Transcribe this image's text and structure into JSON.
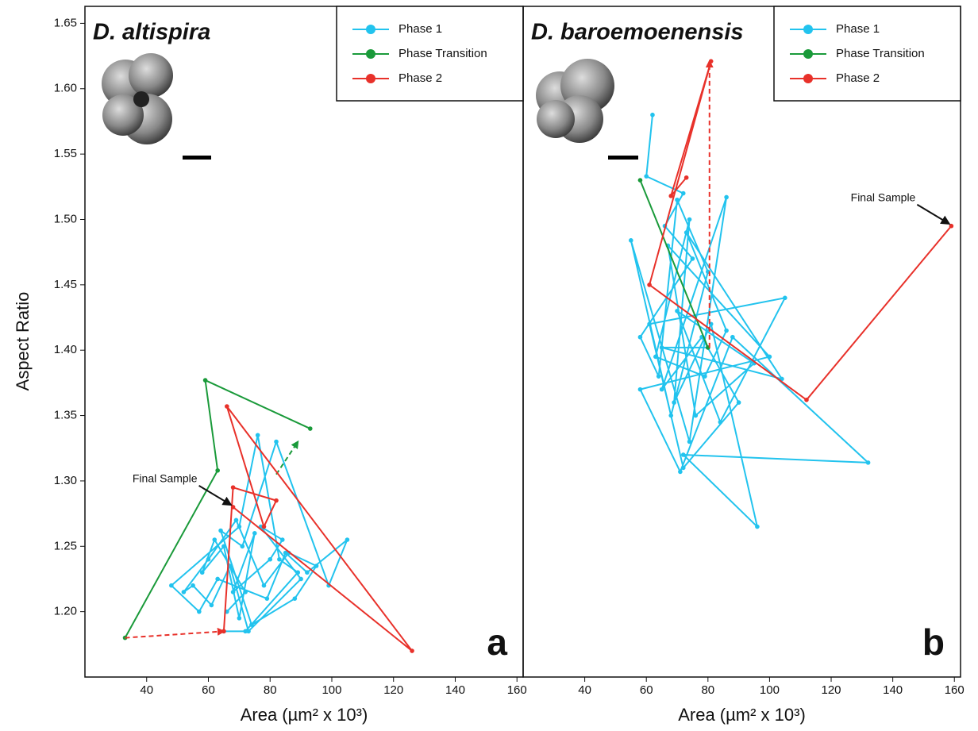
{
  "chart_data": [
    {
      "type": "line",
      "title": "D. altispira",
      "panel_label": "a",
      "ylabel": "Aspect Ratio",
      "xlabel": "Area (µm² x 10³)",
      "xlim": [
        20,
        162
      ],
      "ylim": [
        1.15,
        1.663
      ],
      "xticks": [
        40,
        60,
        80,
        100,
        120,
        140,
        160
      ],
      "yticks": [
        {
          "value": 1.2,
          "label": "1.20"
        },
        {
          "value": 1.25,
          "label": "1.25"
        },
        {
          "value": 1.3,
          "label": "1.30"
        },
        {
          "value": 1.35,
          "label": "1.35"
        },
        {
          "value": 1.4,
          "label": "1.40"
        },
        {
          "value": 1.45,
          "label": "1.45"
        },
        {
          "value": 1.5,
          "label": "1.50"
        },
        {
          "value": 1.55,
          "label": "1.55"
        },
        {
          "value": 1.6,
          "label": "1.60"
        },
        {
          "value": 1.65,
          "label": "1.65"
        }
      ],
      "series": [
        {
          "name": "Phase 1",
          "color": "#22c3ee",
          "x": [
            66,
            72,
            62,
            58,
            65,
            70,
            75,
            68,
            80,
            84,
            77,
            90,
            73,
            67,
            61,
            55,
            52,
            60,
            69,
            78,
            86,
            95,
            88,
            74,
            64,
            71,
            82,
            99,
            105,
            92,
            85,
            79,
            63,
            57,
            48,
            70,
            76,
            83,
            89,
            72,
            65
          ],
          "values": [
            1.2,
            1.215,
            1.255,
            1.23,
            1.25,
            1.195,
            1.26,
            1.215,
            1.24,
            1.255,
            1.265,
            1.225,
            1.185,
            1.235,
            1.205,
            1.22,
            1.215,
            1.24,
            1.27,
            1.22,
            1.245,
            1.235,
            1.21,
            1.19,
            1.262,
            1.25,
            1.33,
            1.22,
            1.255,
            1.23,
            1.245,
            1.21,
            1.225,
            1.2,
            1.22,
            1.265,
            1.335,
            1.24,
            1.23,
            1.185,
            1.185
          ]
        },
        {
          "name": "Phase Transition",
          "color": "#1a9a3a",
          "x": [
            33,
            63,
            59,
            93
          ],
          "values": [
            1.18,
            1.308,
            1.377,
            1.34
          ],
          "dashed": {
            "x": [
              82,
              89
            ],
            "values": [
              1.305,
              1.33
            ]
          }
        },
        {
          "name": "Phase 2",
          "color": "#e8312a",
          "x": [
            65,
            68,
            82,
            78,
            66,
            126,
            68
          ],
          "values": [
            1.185,
            1.295,
            1.285,
            1.265,
            1.357,
            1.17,
            1.28
          ],
          "dashed": {
            "x": [
              33,
              65
            ],
            "values": [
              1.18,
              1.185
            ]
          }
        }
      ],
      "annotations": [
        {
          "text": "Final Sample",
          "x": 68,
          "y": 1.28
        }
      ]
    },
    {
      "type": "line",
      "title": "D. baroemoenensis",
      "panel_label": "b",
      "xlabel": "Area (µm² x 10³)",
      "xlim": [
        20,
        162
      ],
      "ylim": [
        1.15,
        1.663
      ],
      "xticks": [
        40,
        60,
        80,
        100,
        120,
        140,
        160
      ],
      "series": [
        {
          "name": "Phase 1",
          "color": "#22c3ee",
          "x": [
            62,
            60,
            72,
            66,
            75,
            58,
            64,
            70,
            80,
            68,
            55,
            74,
            86,
            65,
            78,
            90,
            72,
            61,
            105,
            84,
            70,
            95,
            76,
            67,
            100,
            58,
            71,
            88,
            132,
            72,
            96,
            81,
            69,
            74,
            63,
            79,
            86,
            73,
            104,
            65,
            80
          ],
          "values": [
            1.58,
            1.533,
            1.52,
            1.495,
            1.47,
            1.41,
            1.38,
            1.515,
            1.46,
            1.35,
            1.484,
            1.33,
            1.517,
            1.37,
            1.41,
            1.36,
            1.31,
            1.42,
            1.44,
            1.345,
            1.43,
            1.39,
            1.35,
            1.48,
            1.395,
            1.37,
            1.307,
            1.41,
            1.314,
            1.32,
            1.265,
            1.42,
            1.36,
            1.5,
            1.395,
            1.38,
            1.415,
            1.49,
            1.378,
            1.402,
            1.402
          ]
        },
        {
          "name": "Phase Transition",
          "color": "#1a9a3a",
          "x": [
            80,
            58
          ],
          "values": [
            1.402,
            1.53
          ]
        },
        {
          "name": "Phase 2",
          "color": "#e8312a",
          "x": [
            73,
            68,
            81,
            61,
            112,
            159
          ],
          "values": [
            1.532,
            1.518,
            1.621,
            1.45,
            1.362,
            1.495
          ],
          "dashed": {
            "x": [
              80.5,
              80.5
            ],
            "values": [
              1.402,
              1.621
            ]
          }
        }
      ],
      "annotations": [
        {
          "text": "Final Sample",
          "x": 159,
          "y": 1.495
        }
      ]
    }
  ]
}
